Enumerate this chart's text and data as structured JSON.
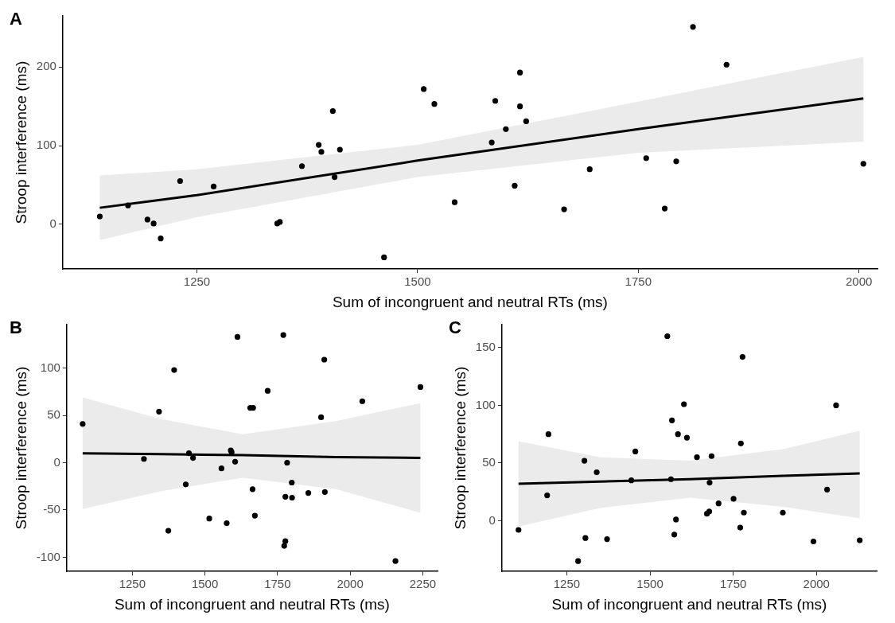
{
  "chart_data": [
    {
      "type": "scatter",
      "annotations": [
        "A"
      ],
      "xlabel": "Sum of incongruent and neutral RTs (ms)",
      "ylabel": "Stroop interference (ms)",
      "xlim": [
        1098,
        2021
      ],
      "ylim": [
        -57,
        265
      ],
      "xticks": [
        1250,
        1500,
        1750,
        2000
      ],
      "yticks": [
        0,
        100,
        200
      ],
      "grid": false,
      "legend": false,
      "series": [
        {
          "marker": "circle",
          "color": "#000000",
          "x": [
            1140,
            1172,
            1194,
            1201,
            1209,
            1231,
            1269,
            1341,
            1344,
            1369,
            1388,
            1391,
            1404,
            1406,
            1412,
            1462,
            1507,
            1519,
            1542,
            1584,
            1588,
            1600,
            1610,
            1616,
            1616,
            1623,
            1666,
            1695,
            1759,
            1780,
            1793,
            1812,
            1850,
            2005
          ],
          "values": [
            10,
            24,
            6,
            1,
            -18,
            55,
            48,
            1,
            3,
            74,
            101,
            92,
            144,
            60,
            95,
            -42,
            172,
            153,
            28,
            104,
            157,
            121,
            49,
            193,
            150,
            131,
            19,
            70,
            84,
            20,
            80,
            251,
            203,
            77
          ]
        },
        {
          "type": "line",
          "marker": "none",
          "color": "#000000",
          "line_style": "solid",
          "x": [
            1140,
            1250,
            1500,
            1750,
            2005
          ],
          "values": [
            21,
            37,
            81,
            121,
            160
          ],
          "lower": [
            -20,
            9,
            60,
            91,
            105
          ],
          "upper": [
            62,
            70,
            101,
            156,
            213
          ]
        }
      ]
    },
    {
      "type": "scatter",
      "annotations": [
        "B"
      ],
      "xlabel": "Sum of incongruent and neutral RTs (ms)",
      "ylabel": "Stroop interference (ms)",
      "xlim": [
        1024,
        2301
      ],
      "ylim": [
        -115,
        146
      ],
      "xticks": [
        1250,
        1500,
        1750,
        2000,
        2250
      ],
      "yticks": [
        -100,
        -50,
        0,
        50,
        100
      ],
      "grid": false,
      "legend": false,
      "series": [
        {
          "marker": "circle",
          "color": "#000000",
          "x": [
            1079,
            1290,
            1342,
            1374,
            1394,
            1434,
            1445,
            1459,
            1515,
            1557,
            1575,
            1589,
            1592,
            1604,
            1612,
            1656,
            1666,
            1664,
            1672,
            1716,
            1770,
            1773,
            1777,
            1777,
            1783,
            1799,
            1800,
            1856,
            1900,
            1911,
            1913,
            2042,
            2156,
            2242
          ],
          "values": [
            41,
            4,
            54,
            -72,
            98,
            -23,
            10,
            5,
            -59,
            -6,
            -64,
            13,
            11,
            1,
            133,
            58,
            58,
            -28,
            -56,
            76,
            135,
            -88,
            -83,
            -36,
            0,
            -21,
            -37,
            -32,
            48,
            109,
            -31,
            65,
            -104,
            80
          ]
        },
        {
          "type": "line",
          "marker": "none",
          "color": "#000000",
          "line_style": "solid",
          "x": [
            1079,
            1350,
            1630,
            1950,
            2242
          ],
          "values": [
            10,
            9,
            8,
            6,
            5
          ],
          "lower": [
            -49,
            -30,
            -16,
            -28,
            -53
          ],
          "upper": [
            69,
            46,
            30,
            44,
            63
          ]
        }
      ]
    },
    {
      "type": "scatter",
      "annotations": [
        "C"
      ],
      "xlabel": "Sum of incongruent and neutral RTs (ms)",
      "ylabel": "Stroop interference (ms)",
      "xlim": [
        1055,
        2181
      ],
      "ylim": [
        -44,
        170
      ],
      "xticks": [
        1250,
        1500,
        1750,
        2000
      ],
      "yticks": [
        0,
        50,
        100,
        150
      ],
      "grid": false,
      "legend": false,
      "series": [
        {
          "marker": "circle",
          "color": "#000000",
          "x": [
            1105,
            1191,
            1195,
            1284,
            1303,
            1306,
            1340,
            1371,
            1444,
            1456,
            1552,
            1563,
            1566,
            1573,
            1578,
            1584,
            1602,
            1611,
            1641,
            1671,
            1678,
            1679,
            1685,
            1706,
            1751,
            1771,
            1773,
            1778,
            1782,
            1899,
            1991,
            2032,
            2059,
            2130
          ],
          "values": [
            -8,
            22,
            75,
            -35,
            52,
            -15,
            42,
            -16,
            35,
            60,
            160,
            36,
            87,
            -12,
            1,
            75,
            101,
            72,
            55,
            6,
            8,
            33,
            56,
            15,
            19,
            -6,
            67,
            142,
            7,
            7,
            -18,
            27,
            100,
            -17
          ]
        },
        {
          "type": "line",
          "marker": "none",
          "color": "#000000",
          "line_style": "solid",
          "x": [
            1105,
            1350,
            1620,
            1900,
            2130
          ],
          "values": [
            32,
            34,
            36,
            39,
            41
          ],
          "lower": [
            -5,
            11,
            20,
            12,
            2
          ],
          "upper": [
            69,
            55,
            52,
            62,
            78
          ]
        }
      ]
    }
  ]
}
